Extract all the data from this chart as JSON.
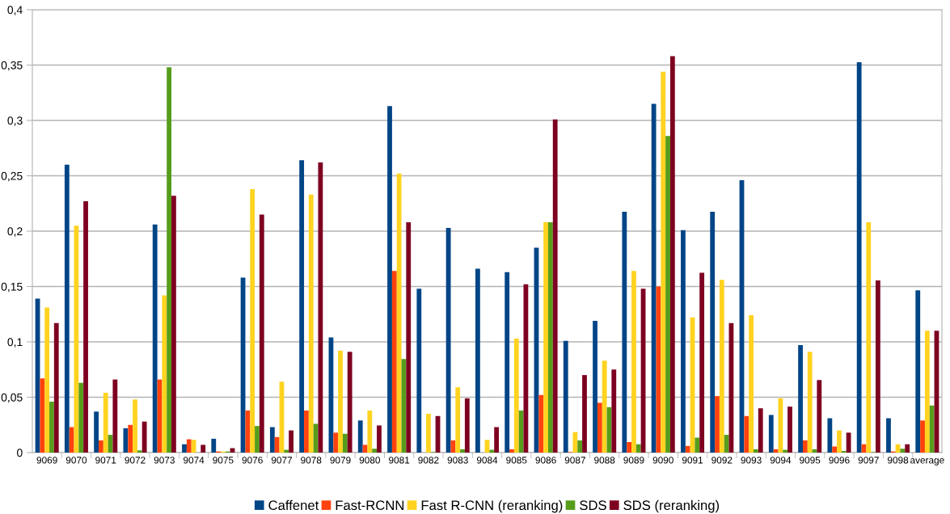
{
  "chart_data": {
    "type": "bar",
    "categories": [
      "9069",
      "9070",
      "9071",
      "9072",
      "9073",
      "9074",
      "9075",
      "9076",
      "9077",
      "9078",
      "9079",
      "9080",
      "9081",
      "9082",
      "9083",
      "9084",
      "9085",
      "9086",
      "9087",
      "9088",
      "9089",
      "9090",
      "9091",
      "9092",
      "9093",
      "9094",
      "9095",
      "9096",
      "9097",
      "9098",
      "average"
    ],
    "series": [
      {
        "name": "Caffenet",
        "color": "#004586",
        "values": [
          0.139,
          0.26,
          0.037,
          0.022,
          0.206,
          0.0075,
          0.0125,
          0.158,
          0.023,
          0.264,
          0.104,
          0.029,
          0.313,
          0.148,
          0.203,
          0.166,
          0.163,
          0.185,
          0.101,
          0.119,
          0.2175,
          0.315,
          0.201,
          0.2175,
          0.246,
          0.034,
          0.097,
          0.031,
          0.3525,
          0.031,
          0.1465
        ]
      },
      {
        "name": "Fast-RCNN",
        "color": "#ff420e",
        "values": [
          0.067,
          0.023,
          0.011,
          0.025,
          0.066,
          0.012,
          0.001,
          0.038,
          0.014,
          0.038,
          0.018,
          0.007,
          0.164,
          0,
          0.011,
          0,
          0.003,
          0.052,
          0.0005,
          0.045,
          0.0095,
          0.15,
          0.006,
          0.051,
          0.033,
          0.003,
          0.011,
          0.0055,
          0.0075,
          0.001,
          0.029
        ]
      },
      {
        "name": "Fast R-CNN (reranking)",
        "color": "#ffd320",
        "values": [
          0.131,
          0.205,
          0.054,
          0.048,
          0.142,
          0.0115,
          0.001,
          0.238,
          0.064,
          0.233,
          0.092,
          0.038,
          0.252,
          0.035,
          0.059,
          0.0115,
          0.103,
          0.208,
          0.0185,
          0.083,
          0.164,
          0.344,
          0.122,
          0.156,
          0.124,
          0.049,
          0.091,
          0.02,
          0.208,
          0.0075,
          0.11
        ]
      },
      {
        "name": "SDS",
        "color": "#579d1c",
        "values": [
          0.046,
          0.063,
          0.016,
          0.002,
          0.348,
          0,
          0.001,
          0.024,
          0.0025,
          0.026,
          0.017,
          0.0035,
          0.0845,
          0.0005,
          0.003,
          0.0025,
          0.038,
          0.208,
          0.011,
          0.041,
          0.0075,
          0.286,
          0.0135,
          0.016,
          0.003,
          0.0025,
          0.003,
          0.0015,
          0.0005,
          0.0035,
          0.0425
        ]
      },
      {
        "name": "SDS (reranking)",
        "color": "#7e0021",
        "values": [
          0.117,
          0.227,
          0.066,
          0.028,
          0.232,
          0.007,
          0.004,
          0.215,
          0.02,
          0.262,
          0.091,
          0.0245,
          0.208,
          0.033,
          0.049,
          0.023,
          0.152,
          0.301,
          0.07,
          0.075,
          0.148,
          0.358,
          0.1625,
          0.117,
          0.04,
          0.0415,
          0.0655,
          0.018,
          0.1555,
          0.0075,
          0.11
        ]
      }
    ],
    "ylim": [
      0,
      0.4
    ],
    "yticks": [
      {
        "value": 0,
        "label": "0"
      },
      {
        "value": 0.05,
        "label": "0,05"
      },
      {
        "value": 0.1,
        "label": "0,1"
      },
      {
        "value": 0.15,
        "label": "0,15"
      },
      {
        "value": 0.2,
        "label": "0,2"
      },
      {
        "value": 0.25,
        "label": "0,25"
      },
      {
        "value": 0.3,
        "label": "0,3"
      },
      {
        "value": 0.35,
        "label": "0,35"
      },
      {
        "value": 0.4,
        "label": "0,4"
      }
    ],
    "grid": "y",
    "legend": "bottom"
  }
}
